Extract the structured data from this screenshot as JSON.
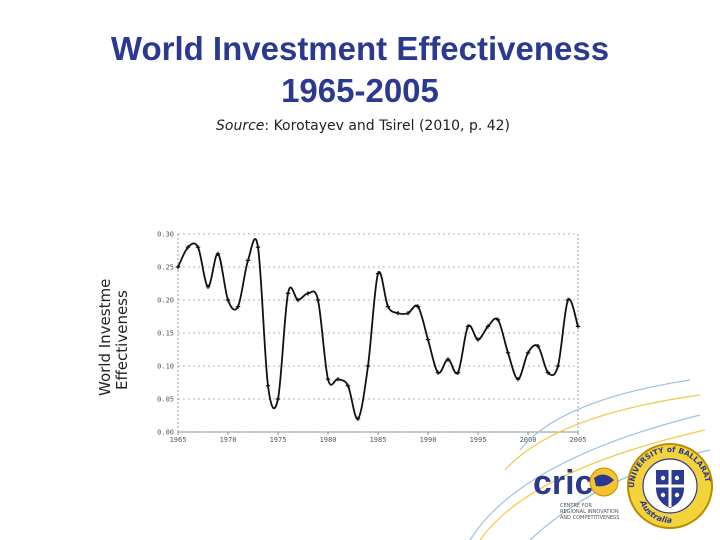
{
  "slide": {
    "title_line1": "World Investment Effectiveness",
    "title_line2": "1965-2005",
    "source_label": "Source",
    "source_text": ": Korotayev and Tsirel (2010, p. 42)"
  },
  "chart_data": {
    "type": "line",
    "ylabel_line1": "World Investment",
    "ylabel_line2": "Effectiveness",
    "ylim": [
      0.0,
      0.3
    ],
    "xlim": [
      1965,
      2005
    ],
    "yticks": [
      "0.00",
      "0.05",
      "0.10",
      "0.15",
      "0.20",
      "0.25",
      "0.30"
    ],
    "xticks": [
      "1965",
      "1970",
      "1975",
      "1980",
      "1985",
      "1990",
      "1995",
      "2000",
      "2005"
    ],
    "series": [
      {
        "name": "World Investment Effectiveness",
        "x": [
          1965,
          1966,
          1967,
          1968,
          1969,
          1970,
          1971,
          1972,
          1973,
          1974,
          1975,
          1976,
          1977,
          1978,
          1979,
          1980,
          1981,
          1982,
          1983,
          1984,
          1985,
          1986,
          1987,
          1988,
          1989,
          1990,
          1991,
          1992,
          1993,
          1994,
          1995,
          1996,
          1997,
          1998,
          1999,
          2000,
          2001,
          2002,
          2003,
          2004,
          2005
        ],
        "values": [
          0.25,
          0.28,
          0.28,
          0.22,
          0.27,
          0.2,
          0.19,
          0.26,
          0.28,
          0.07,
          0.05,
          0.21,
          0.2,
          0.21,
          0.2,
          0.08,
          0.08,
          0.07,
          0.02,
          0.1,
          0.24,
          0.19,
          0.18,
          0.18,
          0.19,
          0.14,
          0.09,
          0.11,
          0.09,
          0.16,
          0.14,
          0.16,
          0.17,
          0.12,
          0.08,
          0.12,
          0.13,
          0.09,
          0.1,
          0.2,
          0.16
        ]
      }
    ]
  },
  "logos": {
    "cric_text": "cric",
    "cric_caption_1": "CENTRE FOR",
    "cric_caption_2": "REGIONAL INNOVATION",
    "cric_caption_3": "AND COMPETITIVENESS",
    "uni_text_top": "UNIVERSITY of BALLARAT",
    "uni_text_bottom": "Australia"
  }
}
